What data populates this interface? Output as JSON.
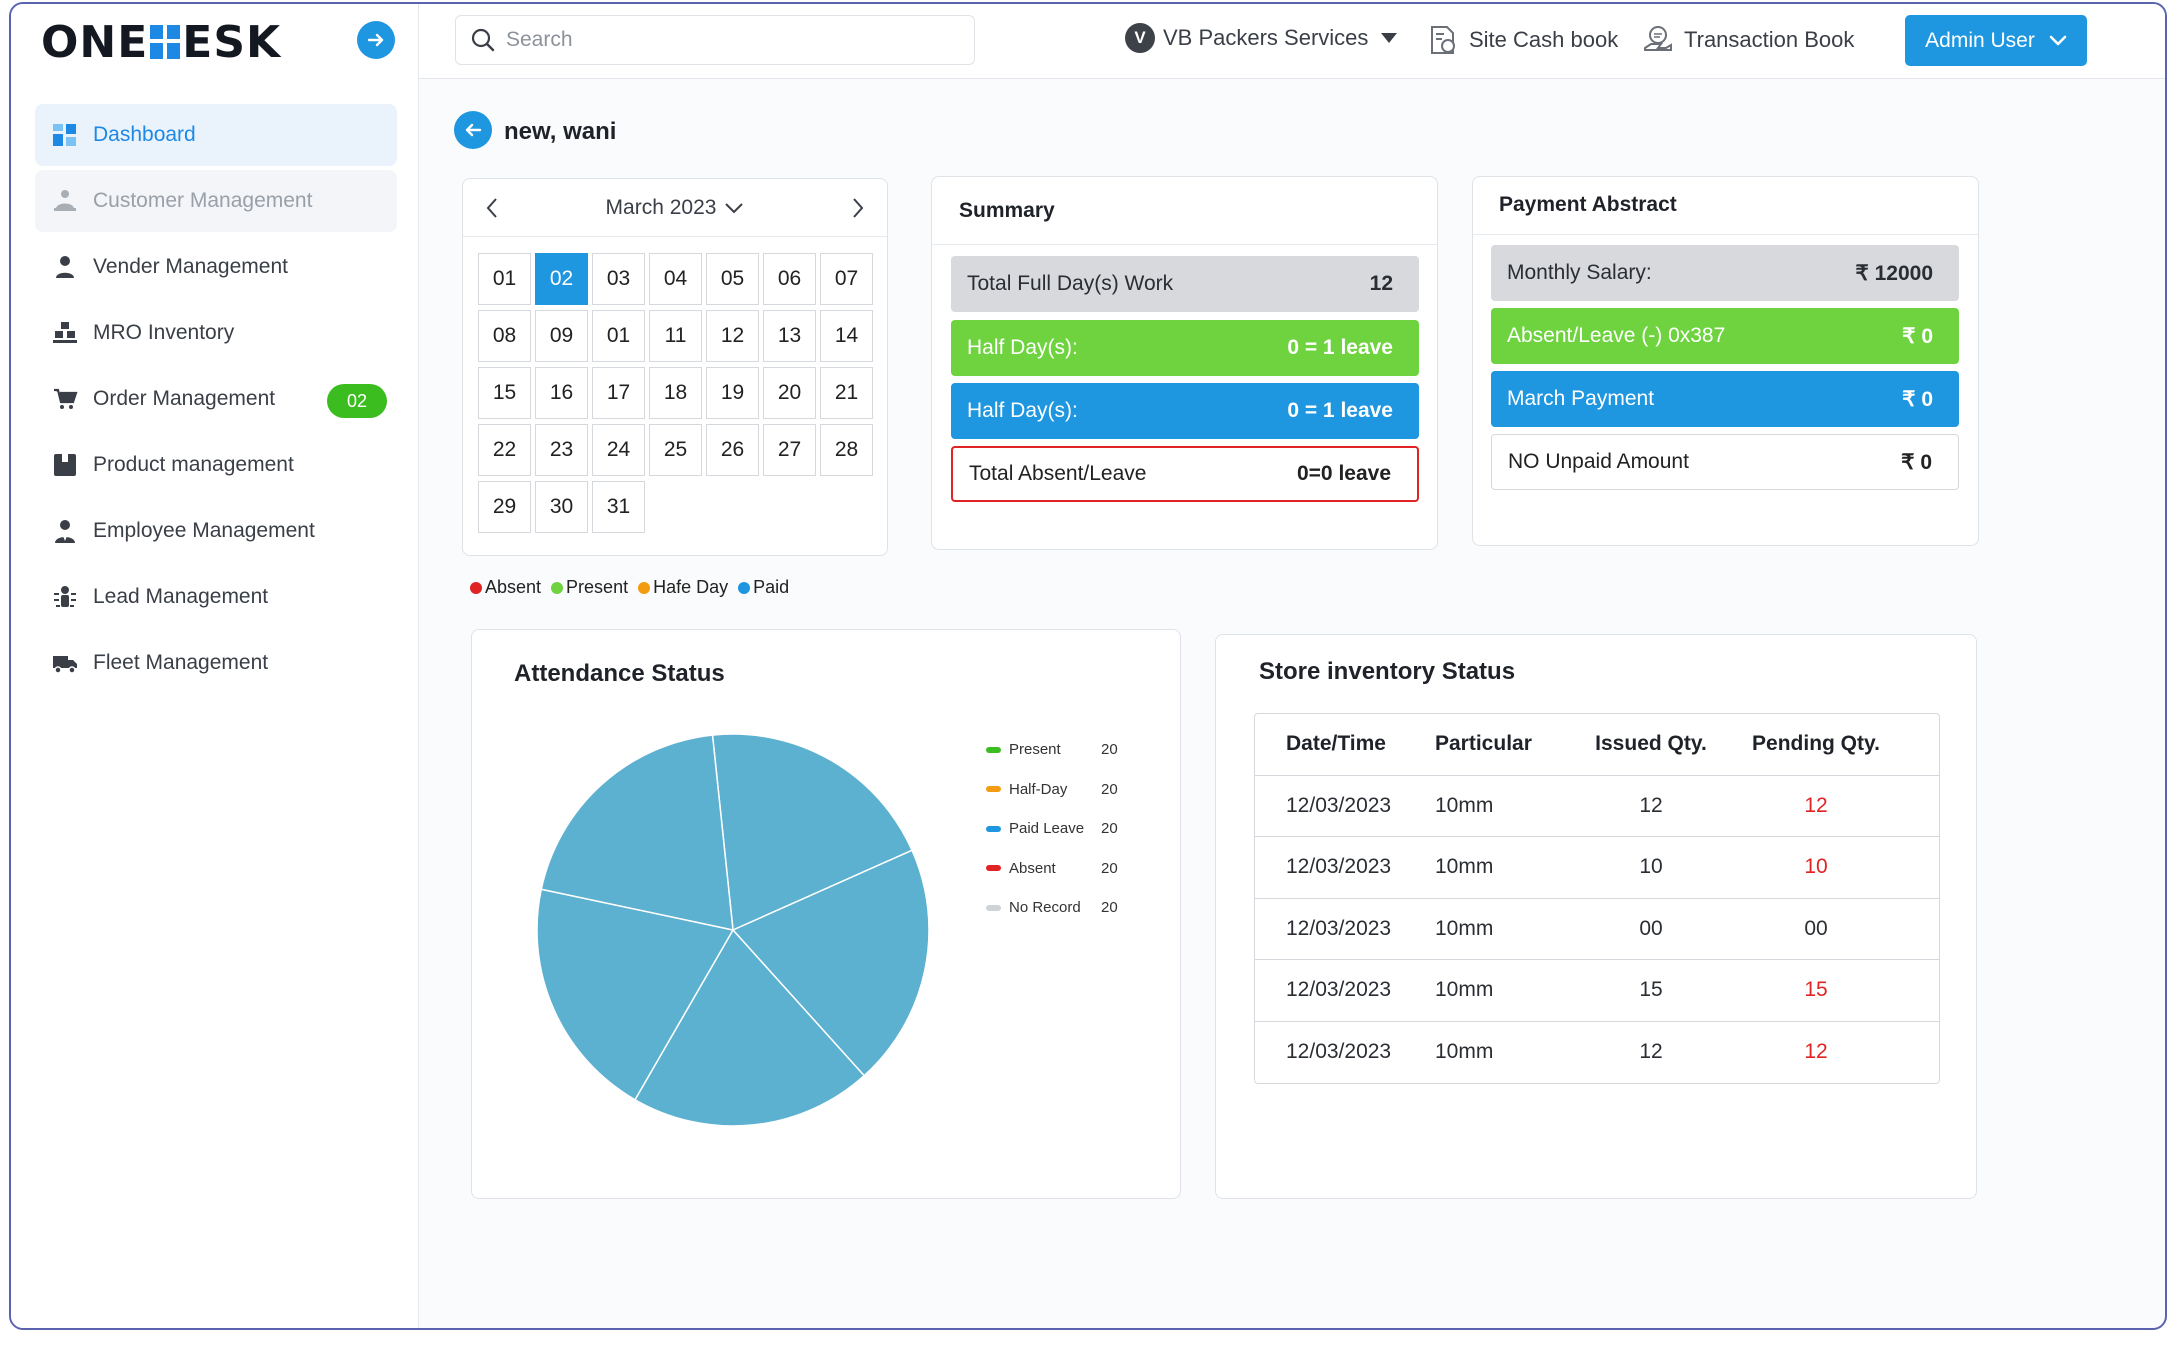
{
  "app": {
    "logo_text_left": "ONE",
    "logo_text_right": "ESK"
  },
  "sidebar": {
    "items": [
      {
        "label": "Dashboard",
        "icon": "dashboard-icon"
      },
      {
        "label": "Customer Management",
        "icon": "customer-icon"
      },
      {
        "label": "Vender Management",
        "icon": "person-icon"
      },
      {
        "label": "MRO Inventory",
        "icon": "inventory-icon"
      },
      {
        "label": "Order Management",
        "icon": "cart-icon",
        "badge": "02"
      },
      {
        "label": "Product management",
        "icon": "box-icon"
      },
      {
        "label": "Employee Management",
        "icon": "employee-icon"
      },
      {
        "label": "Lead Management",
        "icon": "lead-icon"
      },
      {
        "label": "Fleet Management",
        "icon": "truck-icon"
      }
    ]
  },
  "topbar": {
    "search_placeholder": "Search",
    "company_initial": "V",
    "company_name": "VB Packers Services",
    "site_cash_book": "Site Cash book",
    "transaction_book": "Transaction Book",
    "user_button": "Admin User"
  },
  "page": {
    "title": "new, wani"
  },
  "calendar": {
    "month_label": "March 2023",
    "selected": "02",
    "days": [
      "01",
      "02",
      "03",
      "04",
      "05",
      "06",
      "07",
      "08",
      "09",
      "01",
      "11",
      "12",
      "13",
      "14",
      "15",
      "16",
      "17",
      "18",
      "19",
      "20",
      "21",
      "22",
      "23",
      "24",
      "25",
      "26",
      "27",
      "28",
      "29",
      "30",
      "31"
    ]
  },
  "legend": [
    {
      "label": "Absent",
      "color": "#e02424"
    },
    {
      "label": "Present",
      "color": "#6ed33f"
    },
    {
      "label": "Hafe Day",
      "color": "#f39c12"
    },
    {
      "label": "Paid",
      "color": "#1e96e0"
    }
  ],
  "summary": {
    "title": "Summary",
    "rows": [
      {
        "label": "Total Full Day(s) Work",
        "value": "12"
      },
      {
        "label": "Half Day(s):",
        "value": "0 = 1 leave"
      },
      {
        "label": "Half Day(s):",
        "value": "0 = 1 leave"
      },
      {
        "label": "Total Absent/Leave",
        "value": "0=0 leave"
      }
    ]
  },
  "payment": {
    "title": "Payment Abstract",
    "rows": [
      {
        "label": "Monthly Salary:",
        "value": "₹ 12000"
      },
      {
        "label": "Absent/Leave (-) 0x387",
        "value": "₹ 0"
      },
      {
        "label": "March Payment",
        "value": "₹ 0"
      },
      {
        "label": "NO Unpaid Amount",
        "value": "₹ 0"
      }
    ]
  },
  "attendance": {
    "title": "Attendance Status",
    "legend": [
      {
        "label": "Present",
        "count": "20",
        "color": "#3cbd1f"
      },
      {
        "label": "Half-Day",
        "count": "20",
        "color": "#f39c12"
      },
      {
        "label": "Paid Leave",
        "count": "20",
        "color": "#1e96e0"
      },
      {
        "label": "Absent",
        "count": "20",
        "color": "#e02424"
      },
      {
        "label": "No Record",
        "count": "20",
        "color": "#cfd3d8"
      }
    ]
  },
  "chart_data": {
    "type": "pie",
    "title": "Attendance Status",
    "categories": [
      "Present",
      "Half-Day",
      "Paid Leave",
      "Absent",
      "No Record"
    ],
    "values": [
      20,
      20,
      20,
      20,
      20
    ],
    "slice_color": "#5cb0d0"
  },
  "store": {
    "title": "Store inventory Status",
    "headers": [
      "Date/Time",
      "Particular",
      "Issued Qty.",
      "Pending Qty."
    ],
    "rows": [
      {
        "date": "12/03/2023",
        "particular": "10mm",
        "issued": "12",
        "pending": "12",
        "pending_red": true
      },
      {
        "date": "12/03/2023",
        "particular": "10mm",
        "issued": "10",
        "pending": "10",
        "pending_red": true
      },
      {
        "date": "12/03/2023",
        "particular": "10mm",
        "issued": "00",
        "pending": "00",
        "pending_red": false
      },
      {
        "date": "12/03/2023",
        "particular": "10mm",
        "issued": "15",
        "pending": "15",
        "pending_red": true
      },
      {
        "date": "12/03/2023",
        "particular": "10mm",
        "issued": "12",
        "pending": "12",
        "pending_red": true
      }
    ]
  }
}
